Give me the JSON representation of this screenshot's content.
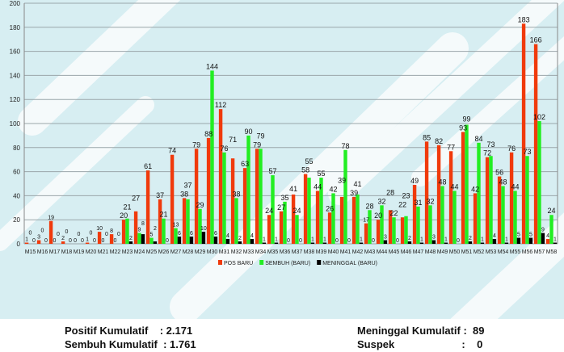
{
  "chart_data": {
    "type": "bar",
    "title": "",
    "xlabel": "",
    "ylabel": "",
    "ylim": [
      0,
      200
    ],
    "yticks": [
      0,
      20,
      40,
      60,
      80,
      100,
      120,
      140,
      160,
      180,
      200
    ],
    "grid": true,
    "legend_position": "bottom",
    "categories": [
      "M15",
      "M16",
      "M17",
      "M18",
      "M19",
      "M20",
      "M21",
      "M22",
      "M23",
      "M24",
      "M25",
      "M26",
      "M27",
      "M28",
      "M29",
      "M30",
      "M31",
      "M32",
      "M33",
      "M34",
      "M35",
      "M36",
      "M37",
      "M38",
      "M39",
      "M40",
      "M41",
      "M42",
      "M43",
      "M44",
      "M45",
      "M46",
      "M47",
      "M48",
      "M49",
      "M50",
      "M51",
      "M52",
      "M53",
      "M54",
      "M55",
      "M56",
      "M57",
      "M58"
    ],
    "series": [
      {
        "name": "POS BARU",
        "color": "#f03a0c",
        "values": [
          1,
          3,
          19,
          2,
          0,
          1,
          10,
          8,
          20,
          27,
          61,
          37,
          74,
          38,
          79,
          88,
          112,
          71,
          63,
          79,
          24,
          27,
          41,
          58,
          44,
          26,
          39,
          39,
          17,
          20,
          28,
          22,
          49,
          85,
          82,
          77,
          93,
          42,
          72,
          56,
          76,
          183,
          166,
          4
        ]
      },
      {
        "name": "SEMBUH (BARU)",
        "color": "#22ee22",
        "values": [
          0,
          0,
          0,
          0,
          0,
          0,
          0,
          0,
          21,
          9,
          5,
          21,
          13,
          37,
          29,
          144,
          76,
          38,
          90,
          79,
          57,
          35,
          24,
          55,
          55,
          42,
          78,
          41,
          28,
          32,
          22,
          23,
          31,
          32,
          48,
          44,
          99,
          84,
          73,
          48,
          44,
          73,
          102,
          24
        ]
      },
      {
        "name": "MENINGGAL (BARU)",
        "color": "#000000",
        "values": [
          0,
          0,
          0,
          0,
          0,
          0,
          0,
          0,
          2,
          8,
          2,
          0,
          6,
          6,
          10,
          6,
          4,
          2,
          4,
          1,
          1,
          0,
          0,
          1,
          1,
          0,
          0,
          1,
          0,
          3,
          0,
          2,
          1,
          3,
          1,
          0,
          2,
          1,
          4,
          1,
          5,
          5,
          9,
          1
        ]
      }
    ]
  },
  "summary": {
    "positif_label": "Positif Kumulatif",
    "positif_value": ": 2.171",
    "sembuh_label": "Sembuh Kumulatif",
    "sembuh_value": ": 1.761",
    "meninggal_label": "Meninggal Kumulatif",
    "meninggal_value": ":  89",
    "suspek_label": "Suspek",
    "suspek_value": ":    0"
  }
}
